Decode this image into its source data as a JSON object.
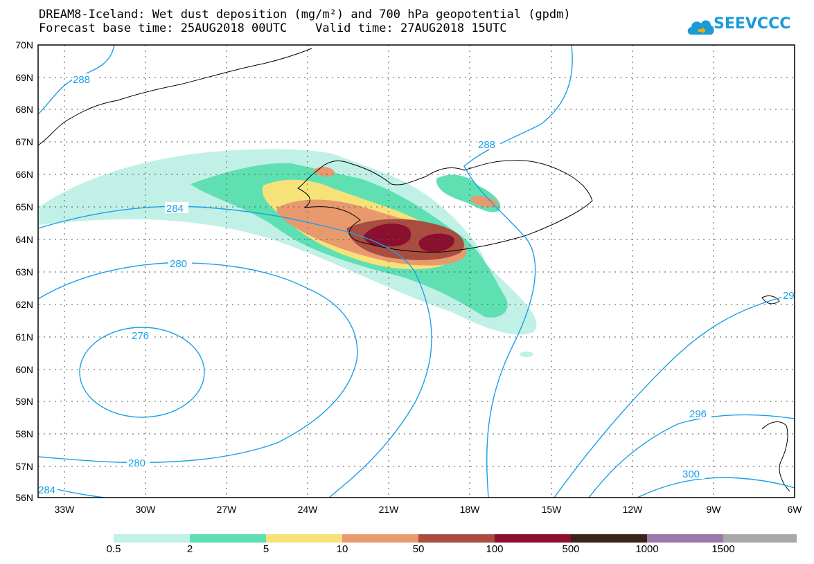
{
  "header": {
    "title_line1": "DREAM8-Iceland: Wet dust deposition (mg/m²) and 700 hPa geopotential (gpdm)",
    "title_line2": "Forecast base time: 25AUG2018 00UTC    Valid time: 27AUG2018 15UTC",
    "logo_text": "SEEVCCC",
    "logo_icon": "cloud-icon"
  },
  "map": {
    "lat_labels": [
      "70N",
      "69N",
      "68N",
      "67N",
      "66N",
      "65N",
      "64N",
      "63N",
      "62N",
      "61N",
      "60N",
      "59N",
      "58N",
      "57N",
      "56N"
    ],
    "lon_labels": [
      "33W",
      "30W",
      "27W",
      "24W",
      "21W",
      "18W",
      "15W",
      "12W",
      "9W",
      "6W"
    ],
    "contour_labels": [
      "288",
      "288",
      "284",
      "280",
      "276",
      "280",
      "284",
      "296",
      "300",
      "29"
    ],
    "gridlines": true
  },
  "colorbar": {
    "labels": [
      "0.5",
      "2",
      "5",
      "10",
      "50",
      "100",
      "500",
      "1000",
      "1500"
    ],
    "colors": [
      "#c1f0e6",
      "#5fe0b2",
      "#f7e27a",
      "#e89a6e",
      "#a84d40",
      "#8b0f2e",
      "#3a2418",
      "#9a78a8",
      "#a8a8a8"
    ]
  }
}
